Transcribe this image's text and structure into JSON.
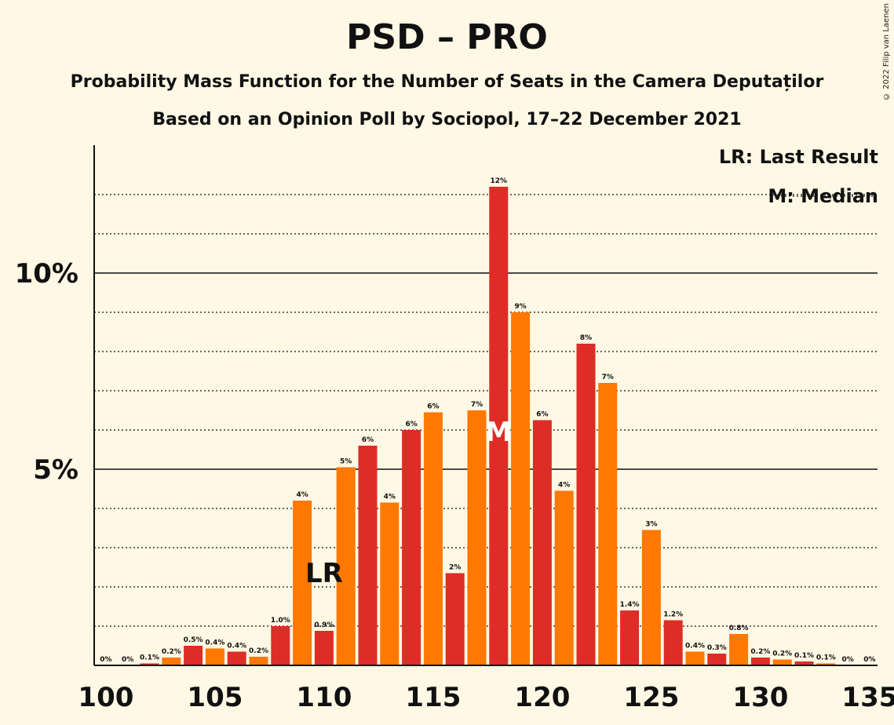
{
  "title": "PSD – PRO",
  "subtitle": "Probability Mass Function for the Number of Seats in the Camera Deputaților",
  "subtitle2": "Based on an Opinion Poll by Sociopol, 17–22 December 2021",
  "copyright": "© 2022 Filip van Laenen",
  "legend": {
    "last_result": "LR: Last Result",
    "median": "M: Median"
  },
  "markers": {
    "lr_label": "LR",
    "lr_seat": 110,
    "median_label": "M",
    "median_seat": 118
  },
  "colors": {
    "red": "#de2d26",
    "orange": "#ff7800",
    "background": "#fff8e5"
  },
  "chart_data": {
    "type": "bar",
    "xlim": [
      100,
      135
    ],
    "ylim": [
      0,
      13
    ],
    "xticks": [
      100,
      105,
      110,
      115,
      120,
      125,
      130,
      135
    ],
    "yticks_labeled": [
      {
        "value": 5,
        "label": "5%"
      },
      {
        "value": 10,
        "label": "10%"
      }
    ],
    "minor_gridlines": [
      1,
      2,
      3,
      4,
      6,
      7,
      8,
      9,
      11,
      12
    ],
    "x": [
      100,
      101,
      102,
      103,
      104,
      105,
      106,
      107,
      108,
      109,
      110,
      111,
      112,
      113,
      114,
      115,
      116,
      117,
      118,
      119,
      120,
      121,
      122,
      123,
      124,
      125,
      126,
      127,
      128,
      129,
      130,
      131,
      132,
      133,
      134,
      135
    ],
    "values": [
      0,
      0,
      0.05,
      0.2,
      0.5,
      0.43,
      0.35,
      0.22,
      1.0,
      4.2,
      0.88,
      5.05,
      5.6,
      4.15,
      6.0,
      6.45,
      2.35,
      6.5,
      12.2,
      9.0,
      6.25,
      4.45,
      8.2,
      7.2,
      1.4,
      3.45,
      1.15,
      0.35,
      0.3,
      0.8,
      0.2,
      0.15,
      0.1,
      0.05,
      0,
      0
    ],
    "labels": [
      "0%",
      "0%",
      "0.1%",
      "0.2%",
      "0.5%",
      "0.4%",
      "0.4%",
      "0.2%",
      "1.0%",
      "4%",
      "0.9%",
      "5%",
      "6%",
      "4%",
      "6%",
      "6%",
      "2%",
      "7%",
      "12%",
      "9%",
      "6%",
      "4%",
      "8%",
      "7%",
      "1.4%",
      "3%",
      "1.2%",
      "0.4%",
      "0.3%",
      "0.8%",
      "0.2%",
      "0.2%",
      "0.1%",
      "0.1%",
      "0%",
      "0%"
    ]
  }
}
